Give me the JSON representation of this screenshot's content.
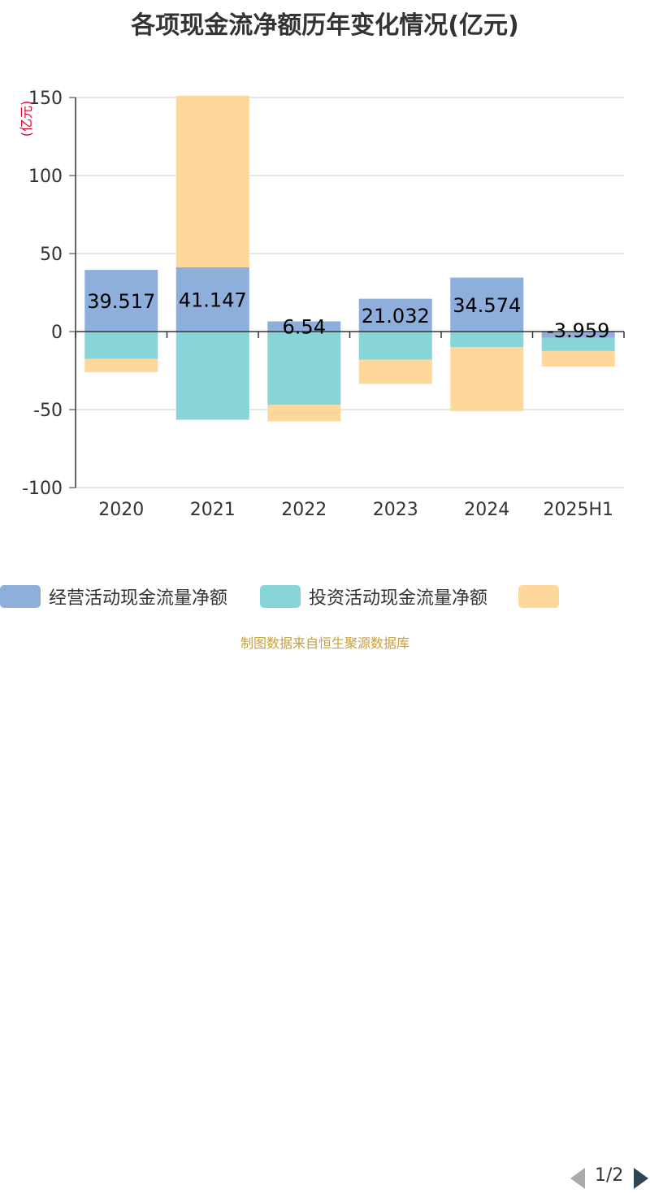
{
  "title": "各项现金流净额历年变化情况(亿元)",
  "source_text": "制图数据来自恒生聚源数据库",
  "legend": {
    "items": [
      {
        "label": "经营活动现金流量净额",
        "color": "#8eaedb"
      },
      {
        "label": "投资活动现金流量净额",
        "color": "#88d5d8"
      },
      {
        "label": "",
        "color": "#fed89b"
      }
    ],
    "page_text": "1/2"
  },
  "chart_data": {
    "type": "bar",
    "stacked": true,
    "ylabel": "(亿元)",
    "ylim": [
      -100,
      150
    ],
    "yticks": [
      -100,
      -50,
      0,
      50,
      100,
      150
    ],
    "grid": true,
    "categories": [
      "2020",
      "2021",
      "2022",
      "2023",
      "2024",
      "2025H1"
    ],
    "series": [
      {
        "name": "经营活动现金流量净额",
        "color": "#8eaedb",
        "values": [
          39.517,
          41.147,
          6.54,
          21.032,
          34.574,
          -3.959
        ],
        "labels": [
          "39.517",
          "41.147",
          "6.54",
          "21.032",
          "34.574",
          "-3.959"
        ]
      },
      {
        "name": "投资活动现金流量净额",
        "color": "#88d5d8",
        "values": [
          -17.5,
          -56.5,
          -47,
          -18,
          -10,
          -8.5
        ]
      },
      {
        "name": "",
        "color": "#fed89b",
        "values": [
          -8.5,
          110,
          -10.5,
          -15.5,
          -41,
          -10
        ]
      }
    ]
  }
}
